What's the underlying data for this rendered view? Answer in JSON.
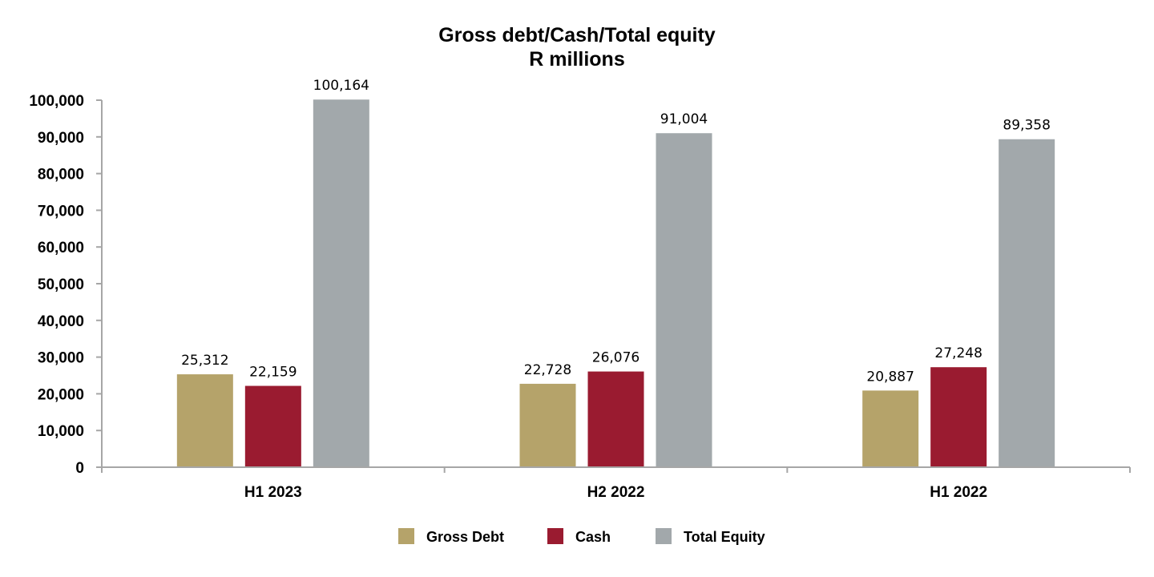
{
  "chart_data": {
    "type": "bar",
    "title": "Gross debt/Cash/Total equity",
    "subtitle": "R millions",
    "categories": [
      "H1 2023",
      "H2 2022",
      "H1 2022"
    ],
    "series": [
      {
        "name": "Gross Debt",
        "values": [
          25312,
          22728,
          20887
        ],
        "value_labels": [
          "25,312",
          "22,728",
          "20,887"
        ],
        "color": "#b5a36a"
      },
      {
        "name": "Cash",
        "values": [
          22159,
          26076,
          27248
        ],
        "value_labels": [
          "22,159",
          "26,076",
          "27,248"
        ],
        "color": "#9a1b30"
      },
      {
        "name": "Total Equity",
        "values": [
          100164,
          91004,
          89358
        ],
        "value_labels": [
          "100,164",
          "91,004",
          "89,358"
        ],
        "color": "#a2a8ab"
      }
    ],
    "ylim": [
      0,
      100000
    ],
    "yticks": [
      0,
      10000,
      20000,
      30000,
      40000,
      50000,
      60000,
      70000,
      80000,
      90000,
      100000
    ],
    "ytick_labels": [
      "0",
      "10,000",
      "20,000",
      "30,000",
      "40,000",
      "50,000",
      "60,000",
      "70,000",
      "80,000",
      "90,000",
      "100,000"
    ],
    "xlabel": "",
    "ylabel": "",
    "grid": false,
    "legend_position": "bottom-center",
    "axis_color": "#a6a6a6"
  }
}
